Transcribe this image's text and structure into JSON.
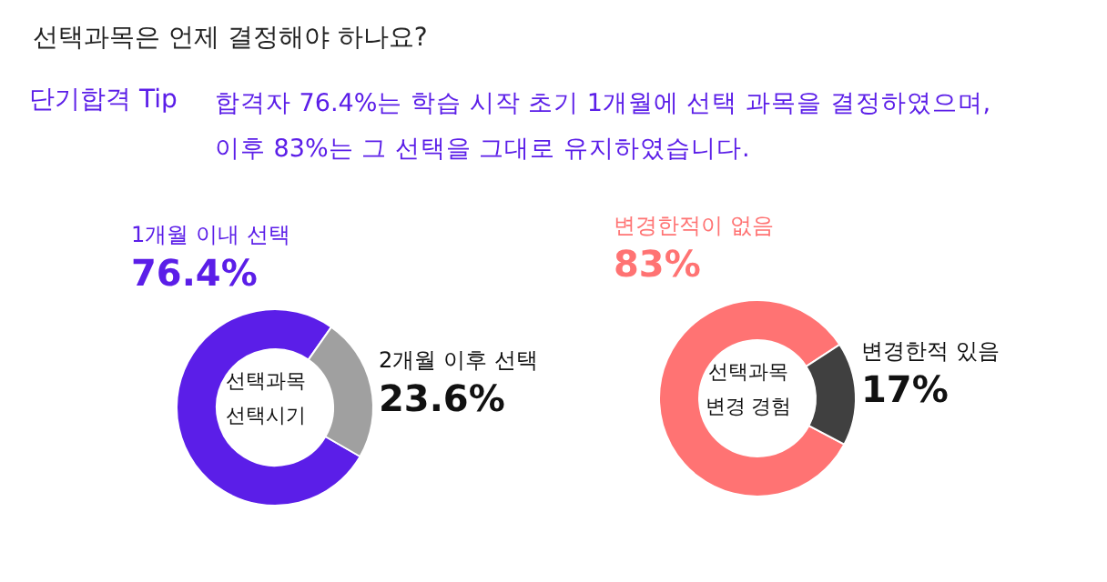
{
  "chart_data": [
    {
      "type": "other",
      "title": "선택과목은 언제 결정해야 하나요?",
      "annotations": [
        "단기합격 Tip",
        "합격자 76.4%는 학습 시작 초기 1개월에 선택 과목을 결정하였으며,\n이후 83%는 그 선택을 그대로 유지하였습니다."
      ]
    },
    {
      "type": "donut",
      "title": "선택과목\n선택시기",
      "categories": [
        "1개월 이내 선택",
        "2개월 이후 선택"
      ],
      "values": [
        76.4,
        23.6
      ],
      "colors": [
        "#5b1ee8",
        "#a0a0a0"
      ],
      "value_labels": [
        "76.4%",
        "23.6%"
      ]
    },
    {
      "type": "donut",
      "title": "선택과목\n변경 경험",
      "categories": [
        "변경한적이 없음",
        "변경한적 있음"
      ],
      "values": [
        83,
        17
      ],
      "colors": [
        "#ff7373",
        "#404040"
      ],
      "value_labels": [
        "83%",
        "17%"
      ]
    }
  ]
}
